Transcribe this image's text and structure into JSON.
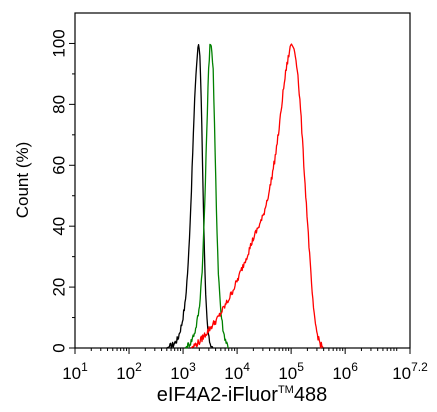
{
  "chart_data": {
    "type": "line",
    "title": "",
    "xlabel": "eIF4A2-iFluor",
    "xlabel_superscript": "TM",
    "xlabel_suffix": "488",
    "ylabel": "Count  (%)",
    "x_scale": "log10",
    "xlim": [
      10,
      15848931.92
    ],
    "ylim": [
      0,
      110
    ],
    "grid": false,
    "legend": "none",
    "x_ticks": [
      {
        "base": "10",
        "exp": "1",
        "value": 10
      },
      {
        "base": "10",
        "exp": "2",
        "value": 100
      },
      {
        "base": "10",
        "exp": "3",
        "value": 1000
      },
      {
        "base": "10",
        "exp": "4",
        "value": 10000
      },
      {
        "base": "10",
        "exp": "5",
        "value": 100000
      },
      {
        "base": "10",
        "exp": "6",
        "value": 1000000
      },
      {
        "base": "10",
        "exp": "7.2",
        "value": 15848931.92
      }
    ],
    "y_ticks": [
      "0",
      "20",
      "40",
      "60",
      "80",
      "100"
    ],
    "series": [
      {
        "color": "#000000",
        "points": [
          [
            500,
            0
          ],
          [
            650,
            1
          ],
          [
            800,
            3
          ],
          [
            950,
            8
          ],
          [
            1100,
            15
          ],
          [
            1250,
            28
          ],
          [
            1400,
            48
          ],
          [
            1550,
            70
          ],
          [
            1700,
            88
          ],
          [
            1850,
            97
          ],
          [
            1950,
            100
          ],
          [
            2050,
            96
          ],
          [
            2150,
            85
          ],
          [
            2300,
            60
          ],
          [
            2450,
            35
          ],
          [
            2600,
            18
          ],
          [
            2800,
            8
          ],
          [
            3000,
            3
          ],
          [
            3300,
            1
          ],
          [
            3600,
            0
          ]
        ]
      },
      {
        "color": "#008000",
        "points": [
          [
            1100,
            0
          ],
          [
            1400,
            2
          ],
          [
            1700,
            6
          ],
          [
            2000,
            13
          ],
          [
            2300,
            28
          ],
          [
            2550,
            50
          ],
          [
            2750,
            72
          ],
          [
            2950,
            90
          ],
          [
            3150,
            100
          ],
          [
            3350,
            99
          ],
          [
            3600,
            92
          ],
          [
            3850,
            70
          ],
          [
            4150,
            45
          ],
          [
            4500,
            25
          ],
          [
            5000,
            12
          ],
          [
            5600,
            5
          ],
          [
            6300,
            2
          ],
          [
            7000,
            0
          ]
        ]
      },
      {
        "color": "#ff0000",
        "points": [
          [
            1400,
            0
          ],
          [
            2000,
            2
          ],
          [
            3000,
            6
          ],
          [
            4500,
            10
          ],
          [
            7000,
            16
          ],
          [
            10000,
            22
          ],
          [
            15000,
            30
          ],
          [
            20000,
            36
          ],
          [
            30000,
            43
          ],
          [
            40000,
            52
          ],
          [
            50000,
            62
          ],
          [
            60000,
            72
          ],
          [
            70000,
            83
          ],
          [
            80000,
            91
          ],
          [
            90000,
            96
          ],
          [
            100000,
            100
          ],
          [
            115000,
            98
          ],
          [
            130000,
            92
          ],
          [
            150000,
            78
          ],
          [
            175000,
            58
          ],
          [
            200000,
            42
          ],
          [
            230000,
            25
          ],
          [
            260000,
            12
          ],
          [
            300000,
            5
          ],
          [
            350000,
            1
          ],
          [
            400000,
            0
          ]
        ]
      }
    ]
  }
}
